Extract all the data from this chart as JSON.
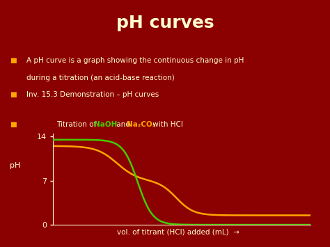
{
  "title": "pH curves",
  "background_color": "#8B0000",
  "title_color": "#FFFFD0",
  "title_fontsize": 18,
  "bullet_color": "#FFA500",
  "text_color": "#FFFFD0",
  "naoh_color": "#44CC00",
  "na2co3_color": "#FFA500",
  "graph_spine_color": "#FFFFD0",
  "ytick_labels": [
    "0",
    "7",
    "14"
  ],
  "ytick_vals": [
    0,
    7,
    14
  ],
  "ylabel": "pH",
  "xlabel": "vol. of titrant (HCl) added (mL)",
  "ylim": [
    0,
    14.5
  ],
  "xlim": [
    0,
    100
  ],
  "bullet1_line1": "A pH curve is a graph showing the continuous change in pH",
  "bullet1_line2": "during a titration (an acid-base reaction)",
  "bullet2": "Inv. 15.3 Demonstration – pH curves",
  "b3_pre": "Titration of ",
  "b3_naoh": "NaOH",
  "b3_mid": " and ",
  "b3_na2co3": "Na₂CO₃",
  "b3_suf": " with HCl"
}
